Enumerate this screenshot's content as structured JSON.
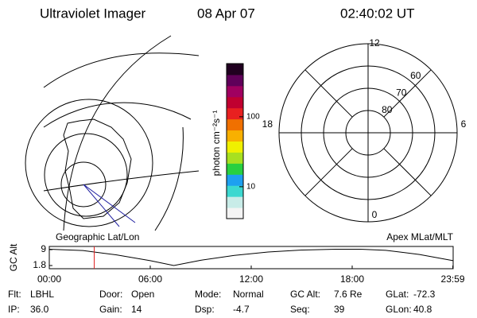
{
  "header": {
    "title": "Ultraviolet Imager",
    "date": "08 Apr 07",
    "time": "02:40:02 UT"
  },
  "map_label": "Geographic Lat/Lon",
  "chart_data": [
    {
      "type": "colorbar",
      "axis_label": "photon cm⁻²s⁻¹",
      "log_scale": true,
      "ylim": [
        3.5,
        575
      ],
      "yticks": [
        10,
        100
      ],
      "colors": [
        "#f4f4f4",
        "#c8ece8",
        "#3cd8d0",
        "#1ea0f0",
        "#28d040",
        "#a8e020",
        "#f0f000",
        "#f8b000",
        "#f07000",
        "#e82020",
        "#c00030",
        "#a00060",
        "#60005a",
        "#200020"
      ]
    },
    {
      "type": "polar",
      "title": "Apex MLat/MLT",
      "rlim": [
        50,
        90
      ],
      "rticks": [
        60,
        70,
        80
      ],
      "angle_ticks": [
        12,
        6,
        0,
        18
      ]
    },
    {
      "type": "line",
      "y_label": "GC Alt",
      "color": "#000000",
      "cursor": 2.67,
      "cursor_color": "#e02020",
      "x": [
        0,
        2,
        4,
        6,
        7.4,
        9,
        11,
        13,
        15,
        17,
        18.5,
        20,
        22,
        24
      ],
      "values": [
        9.2,
        8.6,
        6.6,
        4.0,
        1.8,
        4.2,
        6.4,
        7.9,
        8.8,
        9.2,
        9.2,
        8.7,
        6.8,
        4.0
      ],
      "xlim": [
        0,
        24
      ],
      "ylim": [
        1.8,
        9.0
      ],
      "yticks": [
        1.8,
        9.0
      ],
      "xticks": [
        {
          "value": 0,
          "label": "00:00"
        },
        {
          "value": 6,
          "label": "06:00"
        },
        {
          "value": 12,
          "label": "12:00"
        },
        {
          "value": 18,
          "label": "18:00"
        },
        {
          "value": 23.98,
          "label": "23:59"
        }
      ]
    }
  ],
  "info": [
    [
      [
        "Flt:",
        "LBHL"
      ],
      [
        "Door:",
        "Open"
      ],
      [
        "Mode:",
        "Normal"
      ],
      [
        "GC Alt:",
        "7.6 Re"
      ],
      [
        "GLat:",
        "-72.3"
      ]
    ],
    [
      [
        "IP:",
        "36.0"
      ],
      [
        "Gain:",
        "14"
      ],
      [
        "Dsp:",
        "-4.7"
      ],
      [
        "Seq:",
        "39"
      ],
      [
        "GLon:",
        "40.8"
      ]
    ]
  ]
}
